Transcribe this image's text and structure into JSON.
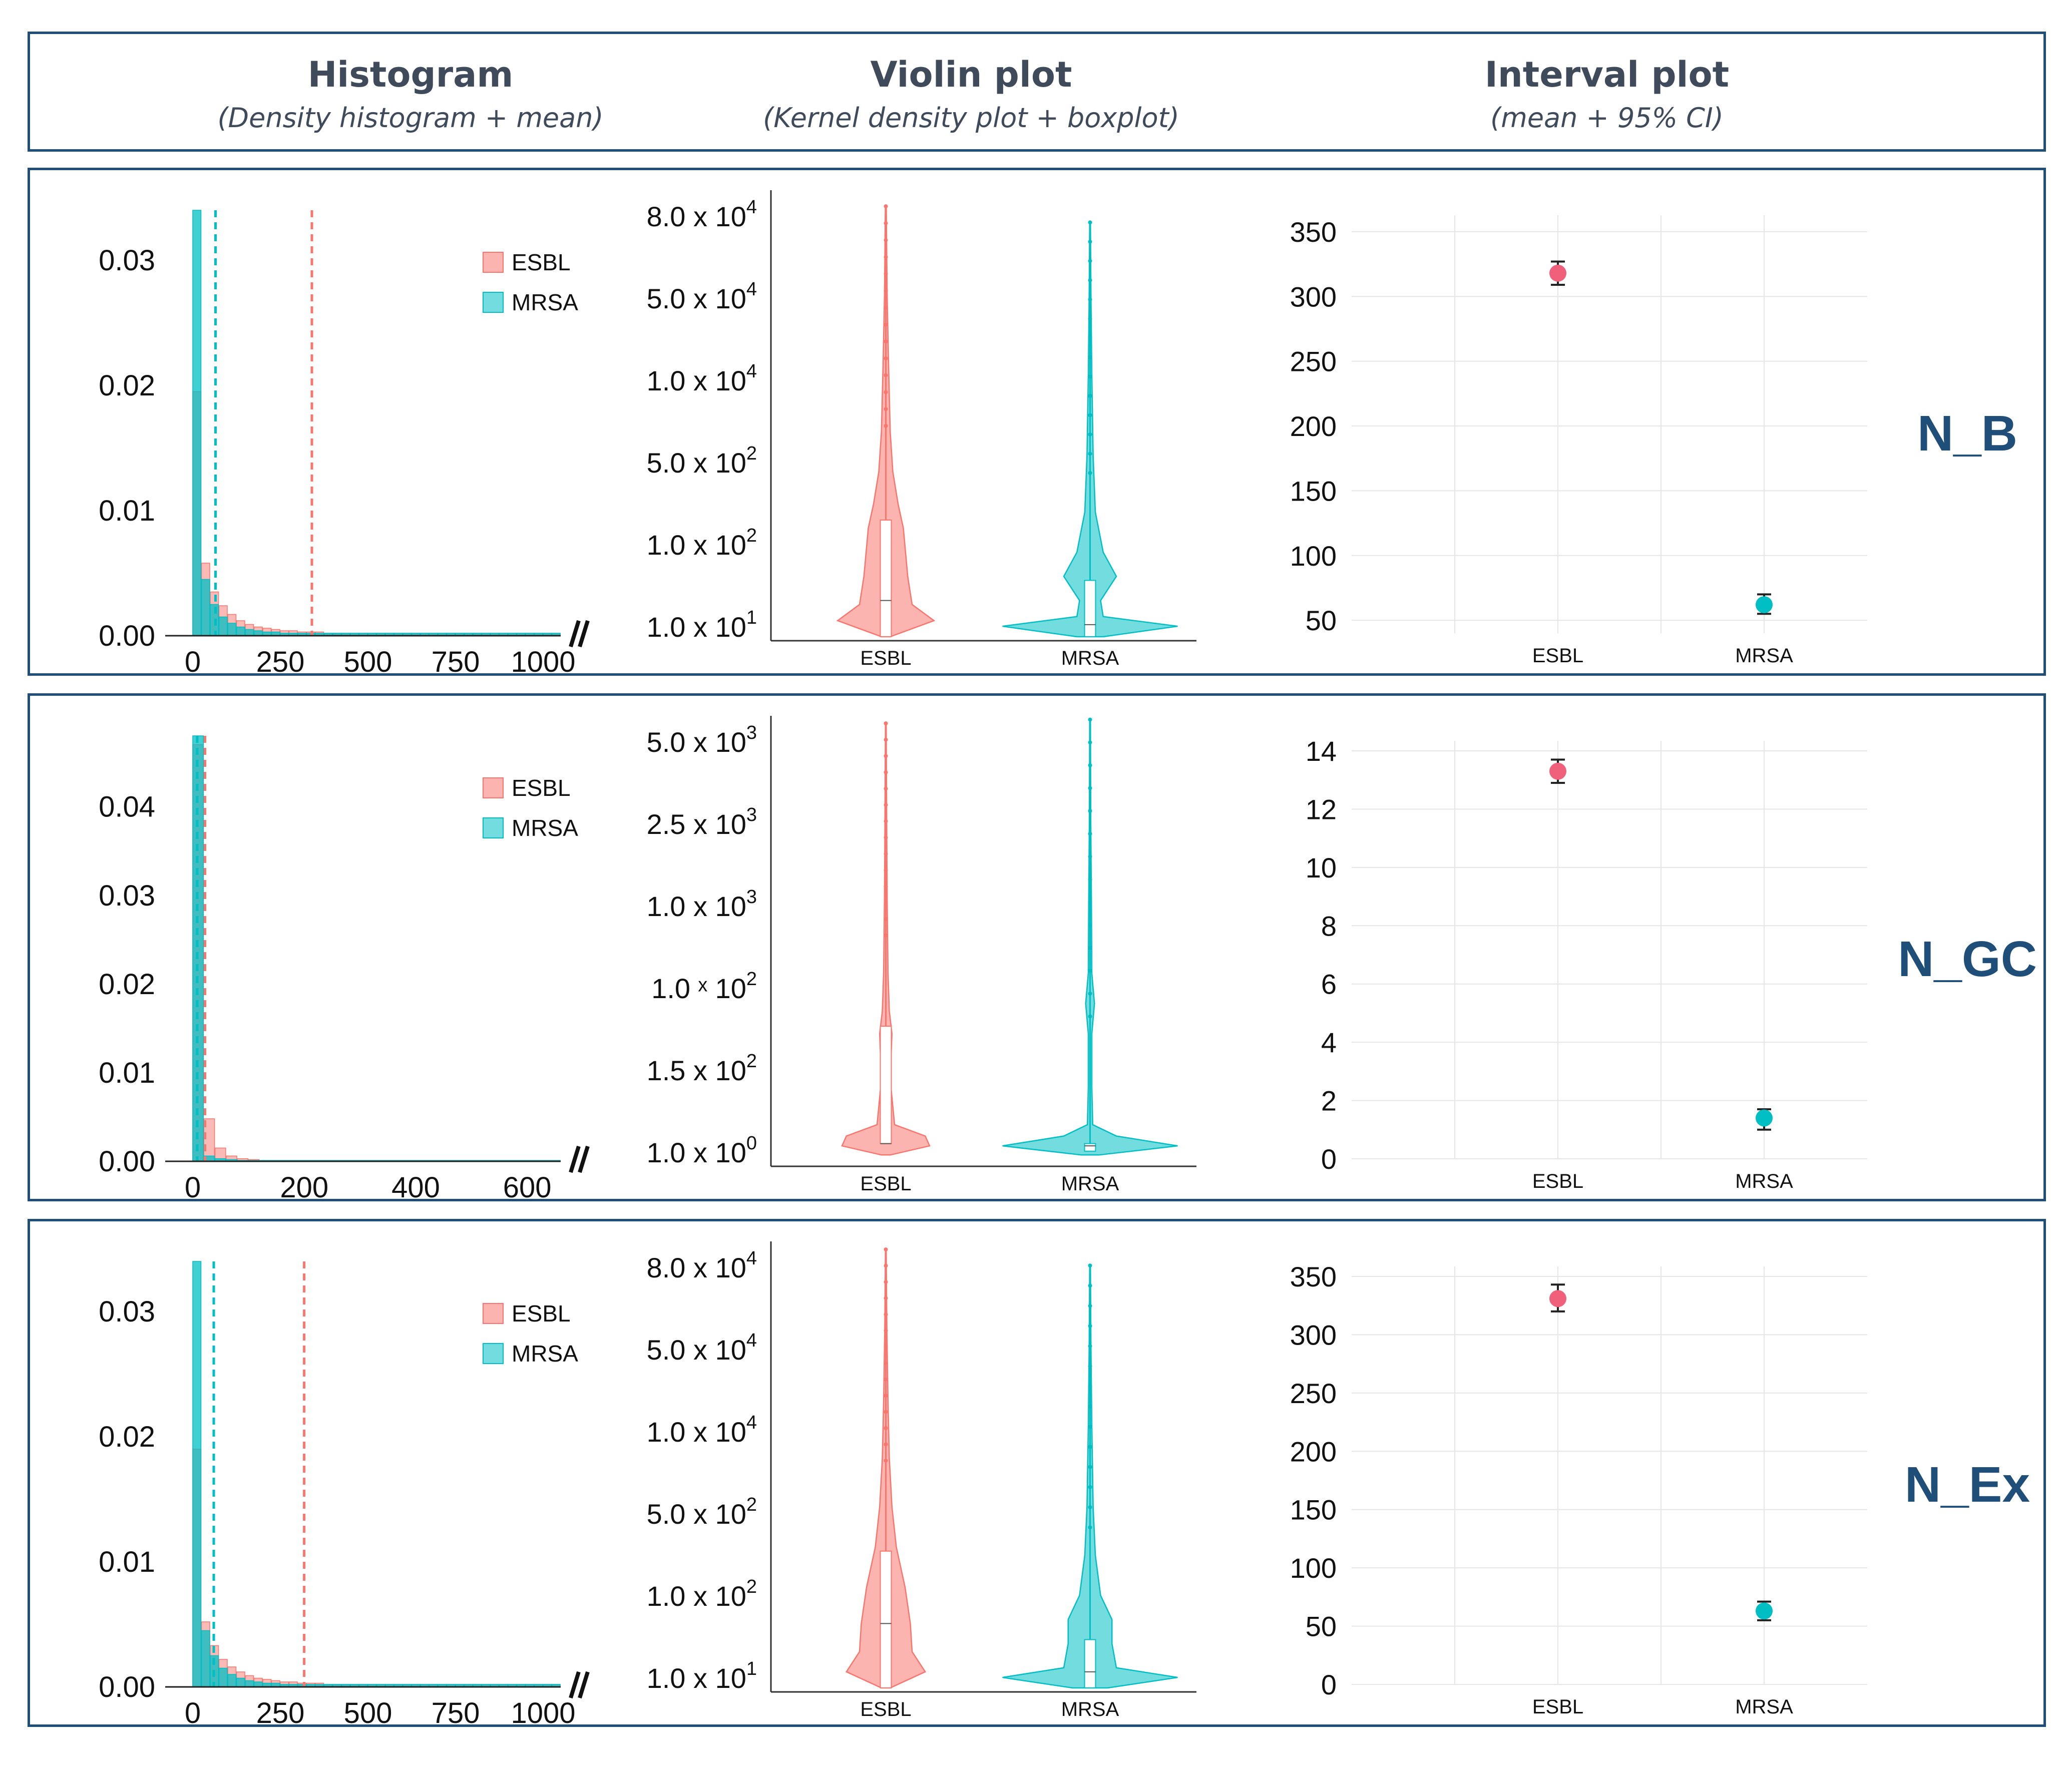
{
  "header": {
    "columns": [
      {
        "title": "Histogram",
        "subtitle": "(Density histogram + mean)"
      },
      {
        "title": "Violin plot",
        "subtitle": "(Kernel density plot + boxplot)"
      },
      {
        "title": "Interval plot",
        "subtitle": "(mean + 95% CI)"
      }
    ]
  },
  "colors": {
    "esbl": "#f8766d",
    "mrsa": "#00bfc4",
    "frame": "#1f4e79",
    "label": "#1f4e79",
    "esbl_point": "#f0607a"
  },
  "legend": {
    "items": [
      "ESBL",
      "MRSA"
    ]
  },
  "chart_data": [
    {
      "panel": "N_B",
      "histogram": {
        "type": "bar",
        "xticks": [
          "0",
          "250",
          "500",
          "750",
          "1000"
        ],
        "xlim": [
          0,
          1050
        ],
        "yticks": [
          "0.00",
          "0.01",
          "0.02",
          "0.03"
        ],
        "ylim": [
          0,
          0.034
        ],
        "bin_width": 25,
        "series": [
          {
            "name": "ESBL",
            "values": [
              0.0195,
              0.0058,
              0.0035,
              0.0024,
              0.0017,
              0.0012,
              0.0009,
              0.0007,
              0.0006,
              0.0005,
              0.0004,
              0.0004,
              0.0003,
              0.0003,
              0.0003,
              0.0002,
              0.0002,
              0.0002,
              0.0002,
              0.0002,
              0.0002,
              0.0002,
              0.0002,
              0.0002,
              0.0002,
              0.0002,
              0.0002,
              0.0002,
              0.0002,
              0.0002,
              0.0002,
              0.0002,
              0.0002,
              0.0002,
              0.0002,
              0.0002,
              0.0002,
              0.0002,
              0.0002,
              0.0002,
              0.0002,
              0.0002
            ],
            "mean": 340
          },
          {
            "name": "MRSA",
            "values": [
              0.034,
              0.0045,
              0.0025,
              0.0015,
              0.001,
              0.0007,
              0.0005,
              0.0004,
              0.0003,
              0.0003,
              0.0002,
              0.0002,
              0.0002,
              0.0002,
              0.0002,
              0.0002,
              0.0002,
              0.0002,
              0.0002,
              0.0002,
              0.0002,
              0.0002,
              0.0002,
              0.0002,
              0.0002,
              0.0002,
              0.0002,
              0.0002,
              0.0002,
              0.0002,
              0.0002,
              0.0002,
              0.0002,
              0.0002,
              0.0002,
              0.0002,
              0.0002,
              0.0002,
              0.0002,
              0.0002,
              0.0002,
              0.0002
            ],
            "mean": 65
          }
        ]
      },
      "violin": {
        "type": "violin",
        "categories": [
          "ESBL",
          "MRSA"
        ],
        "yticks": [
          {
            "mantissa": "1.0 x 10",
            "exp": "1"
          },
          {
            "mantissa": "1.0 x 10",
            "exp": "2"
          },
          {
            "mantissa": "5.0 x 10",
            "exp": "2"
          },
          {
            "mantissa": "1.0 x 10",
            "exp": "4"
          },
          {
            "mantissa": "5.0 x 10",
            "exp": "4"
          },
          {
            "mantissa": "8.0 x 10",
            "exp": "4"
          }
        ],
        "ylim": [
          0.7,
          6.3
        ],
        "series": [
          {
            "name": "ESBL",
            "median": 1.2,
            "q1": 0.75,
            "q3": 2.2,
            "max": 6.1,
            "profile": [
              [
                0.75,
                0.05
              ],
              [
                0.95,
                0.55
              ],
              [
                1.15,
                0.3
              ],
              [
                1.5,
                0.25
              ],
              [
                2.1,
                0.2
              ],
              [
                2.4,
                0.14
              ],
              [
                2.8,
                0.08
              ],
              [
                3.3,
                0.05
              ],
              [
                4.2,
                0.03
              ],
              [
                5.0,
                0.015
              ],
              [
                6.1,
                0.005
              ]
            ]
          },
          {
            "name": "MRSA",
            "median": 0.9,
            "q1": 0.75,
            "q3": 1.45,
            "max": 5.9,
            "profile": [
              [
                0.75,
                0.15
              ],
              [
                0.88,
                1.0
              ],
              [
                1.0,
                0.15
              ],
              [
                1.2,
                0.12
              ],
              [
                1.5,
                0.3
              ],
              [
                1.8,
                0.15
              ],
              [
                2.3,
                0.06
              ],
              [
                3.0,
                0.035
              ],
              [
                4.0,
                0.02
              ],
              [
                5.0,
                0.01
              ],
              [
                5.9,
                0.004
              ]
            ]
          }
        ]
      },
      "interval": {
        "type": "scatter",
        "categories": [
          "ESBL",
          "MRSA"
        ],
        "yticks": [
          "50",
          "100",
          "150",
          "200",
          "250",
          "300",
          "350"
        ],
        "ylim": [
          40,
          355
        ],
        "series": [
          {
            "name": "ESBL",
            "mean": 318,
            "low": 309,
            "high": 327
          },
          {
            "name": "MRSA",
            "mean": 62,
            "low": 55,
            "high": 70
          }
        ]
      }
    },
    {
      "panel": "N_GC",
      "histogram": {
        "type": "bar",
        "xticks": [
          "0",
          "200",
          "400",
          "600"
        ],
        "xlim": [
          0,
          660
        ],
        "yticks": [
          "0.00",
          "0.01",
          "0.02",
          "0.03",
          "0.04"
        ],
        "ylim": [
          0,
          0.048
        ],
        "bin_width": 20,
        "series": [
          {
            "name": "ESBL",
            "values": [
              0.047,
              0.0048,
              0.0015,
              0.0006,
              0.0003,
              0.0002,
              0.0001,
              0.0001,
              0.0001,
              0.0001,
              0.0001,
              0.0001,
              0.0001,
              0.0001,
              0.0001,
              0.0001,
              0.0001,
              0.0001,
              0.0001,
              0.0001,
              0.0001,
              0.0001,
              0.0001,
              0.0001,
              0.0001,
              0.0001,
              0.0001,
              0.0001,
              0.0001,
              0.0001,
              0.0001,
              0.0001,
              0.0001
            ],
            "mean": 22
          },
          {
            "name": "MRSA",
            "values": [
              0.048,
              0.0006,
              0.0003,
              0.0002,
              0.0001,
              0.0001,
              0.0001,
              0.0001,
              0.0001,
              0.0001,
              0.0001,
              0.0001,
              0.0001,
              0.0001,
              0.0001,
              0.0001,
              0.0001,
              0.0001,
              0.0001,
              0.0001,
              0.0001,
              0.0001,
              0.0001,
              0.0001,
              0.0001,
              0.0001,
              0.0001,
              0.0001,
              0.0001,
              0.0001,
              0.0001,
              0.0001,
              0.0001
            ],
            "mean": 8
          }
        ]
      },
      "violin": {
        "type": "violin",
        "categories": [
          "ESBL",
          "MRSA"
        ],
        "yticks": [
          {
            "mantissa": "1.0 x 10",
            "exp": "0"
          },
          {
            "mantissa": "1.5 x 10",
            "exp": "2"
          },
          {
            "mantissa": "1.0 ˣ 10",
            "exp": "2"
          },
          {
            "mantissa": "1.0 x 10",
            "exp": "3"
          },
          {
            "mantissa": "2.5 x 10",
            "exp": "3"
          },
          {
            "mantissa": "5.0 x 10",
            "exp": "3"
          }
        ],
        "ylim": [
          0.45,
          6.4
        ],
        "series": [
          {
            "name": "ESBL",
            "median": 0.75,
            "q1": 0.75,
            "q3": 2.3,
            "max": 6.3,
            "profile": [
              [
                0.6,
                0.05
              ],
              [
                0.72,
                0.5
              ],
              [
                0.85,
                0.45
              ],
              [
                1.0,
                0.1
              ],
              [
                1.6,
                0.05
              ],
              [
                2.2,
                0.07
              ],
              [
                2.5,
                0.04
              ],
              [
                3.0,
                0.025
              ],
              [
                4.0,
                0.015
              ],
              [
                5.0,
                0.01
              ],
              [
                6.3,
                0.004
              ]
            ]
          },
          {
            "name": "MRSA",
            "median": 0.72,
            "q1": 0.65,
            "q3": 0.75,
            "max": 6.35,
            "profile": [
              [
                0.6,
                0.1
              ],
              [
                0.72,
                1.0
              ],
              [
                0.85,
                0.3
              ],
              [
                1.0,
                0.03
              ],
              [
                1.5,
                0.02
              ],
              [
                2.2,
                0.02
              ],
              [
                2.6,
                0.05
              ],
              [
                3.0,
                0.02
              ],
              [
                4.0,
                0.015
              ],
              [
                5.0,
                0.008
              ],
              [
                6.35,
                0.004
              ]
            ]
          }
        ]
      },
      "interval": {
        "type": "scatter",
        "categories": [
          "ESBL",
          "MRSA"
        ],
        "yticks": [
          "0",
          "2",
          "4",
          "6",
          "8",
          "10",
          "12",
          "14"
        ],
        "ylim": [
          0,
          14
        ],
        "series": [
          {
            "name": "ESBL",
            "mean": 13.3,
            "low": 12.9,
            "high": 13.7
          },
          {
            "name": "MRSA",
            "mean": 1.4,
            "low": 1.0,
            "high": 1.7
          }
        ]
      }
    },
    {
      "panel": "N_Ex",
      "histogram": {
        "type": "bar",
        "xticks": [
          "0",
          "250",
          "500",
          "750",
          "1000"
        ],
        "xlim": [
          0,
          1050
        ],
        "yticks": [
          "0.00",
          "0.01",
          "0.02",
          "0.03"
        ],
        "ylim": [
          0,
          0.034
        ],
        "bin_width": 25,
        "series": [
          {
            "name": "ESBL",
            "values": [
              0.019,
              0.0052,
              0.0033,
              0.0022,
              0.0016,
              0.0012,
              0.0009,
              0.0007,
              0.0006,
              0.0005,
              0.0004,
              0.0004,
              0.0003,
              0.0003,
              0.0003,
              0.0002,
              0.0002,
              0.0002,
              0.0002,
              0.0002,
              0.0002,
              0.0002,
              0.0002,
              0.0002,
              0.0002,
              0.0002,
              0.0002,
              0.0002,
              0.0002,
              0.0002,
              0.0002,
              0.0002,
              0.0002,
              0.0002,
              0.0002,
              0.0002,
              0.0002,
              0.0002,
              0.0002,
              0.0002,
              0.0002,
              0.0002
            ],
            "mean": 318
          },
          {
            "name": "MRSA",
            "values": [
              0.034,
              0.0045,
              0.0025,
              0.0015,
              0.001,
              0.0007,
              0.0005,
              0.0004,
              0.0003,
              0.0003,
              0.0002,
              0.0002,
              0.0002,
              0.0002,
              0.0002,
              0.0002,
              0.0002,
              0.0002,
              0.0002,
              0.0002,
              0.0002,
              0.0002,
              0.0002,
              0.0002,
              0.0002,
              0.0002,
              0.0002,
              0.0002,
              0.0002,
              0.0002,
              0.0002,
              0.0002,
              0.0002,
              0.0002,
              0.0002,
              0.0002,
              0.0002,
              0.0002,
              0.0002,
              0.0002,
              0.0002,
              0.0002
            ],
            "mean": 60
          }
        ]
      },
      "violin": {
        "type": "violin",
        "categories": [
          "ESBL",
          "MRSA"
        ],
        "yticks": [
          {
            "mantissa": "1.0 x 10",
            "exp": "1"
          },
          {
            "mantissa": "1.0 x 10",
            "exp": "2"
          },
          {
            "mantissa": "5.0 x 10",
            "exp": "2"
          },
          {
            "mantissa": "1.0 x 10",
            "exp": "4"
          },
          {
            "mantissa": "5.0 x 10",
            "exp": "4"
          },
          {
            "mantissa": "8.0 x 10",
            "exp": "4"
          }
        ],
        "ylim": [
          0.7,
          6.3
        ],
        "series": [
          {
            "name": "ESBL",
            "median": 1.55,
            "q1": 0.75,
            "q3": 2.45,
            "max": 6.2,
            "profile": [
              [
                0.75,
                0.05
              ],
              [
                0.95,
                0.45
              ],
              [
                1.2,
                0.3
              ],
              [
                1.55,
                0.28
              ],
              [
                2.0,
                0.22
              ],
              [
                2.5,
                0.12
              ],
              [
                3.0,
                0.07
              ],
              [
                3.6,
                0.04
              ],
              [
                4.3,
                0.025
              ],
              [
                5.2,
                0.012
              ],
              [
                6.2,
                0.004
              ]
            ]
          },
          {
            "name": "MRSA",
            "median": 0.95,
            "q1": 0.75,
            "q3": 1.35,
            "max": 6.0,
            "profile": [
              [
                0.75,
                0.2
              ],
              [
                0.88,
                1.0
              ],
              [
                1.0,
                0.3
              ],
              [
                1.3,
                0.25
              ],
              [
                1.6,
                0.25
              ],
              [
                1.9,
                0.12
              ],
              [
                2.4,
                0.06
              ],
              [
                3.0,
                0.035
              ],
              [
                4.0,
                0.02
              ],
              [
                5.0,
                0.01
              ],
              [
                6.0,
                0.004
              ]
            ]
          }
        ]
      },
      "interval": {
        "type": "scatter",
        "categories": [
          "ESBL",
          "MRSA"
        ],
        "yticks": [
          "0",
          "50",
          "100",
          "150",
          "200",
          "250",
          "300",
          "350"
        ],
        "ylim": [
          0,
          350
        ],
        "series": [
          {
            "name": "ESBL",
            "mean": 331,
            "low": 320,
            "high": 343
          },
          {
            "name": "MRSA",
            "mean": 63,
            "low": 55,
            "high": 71
          }
        ]
      }
    }
  ]
}
